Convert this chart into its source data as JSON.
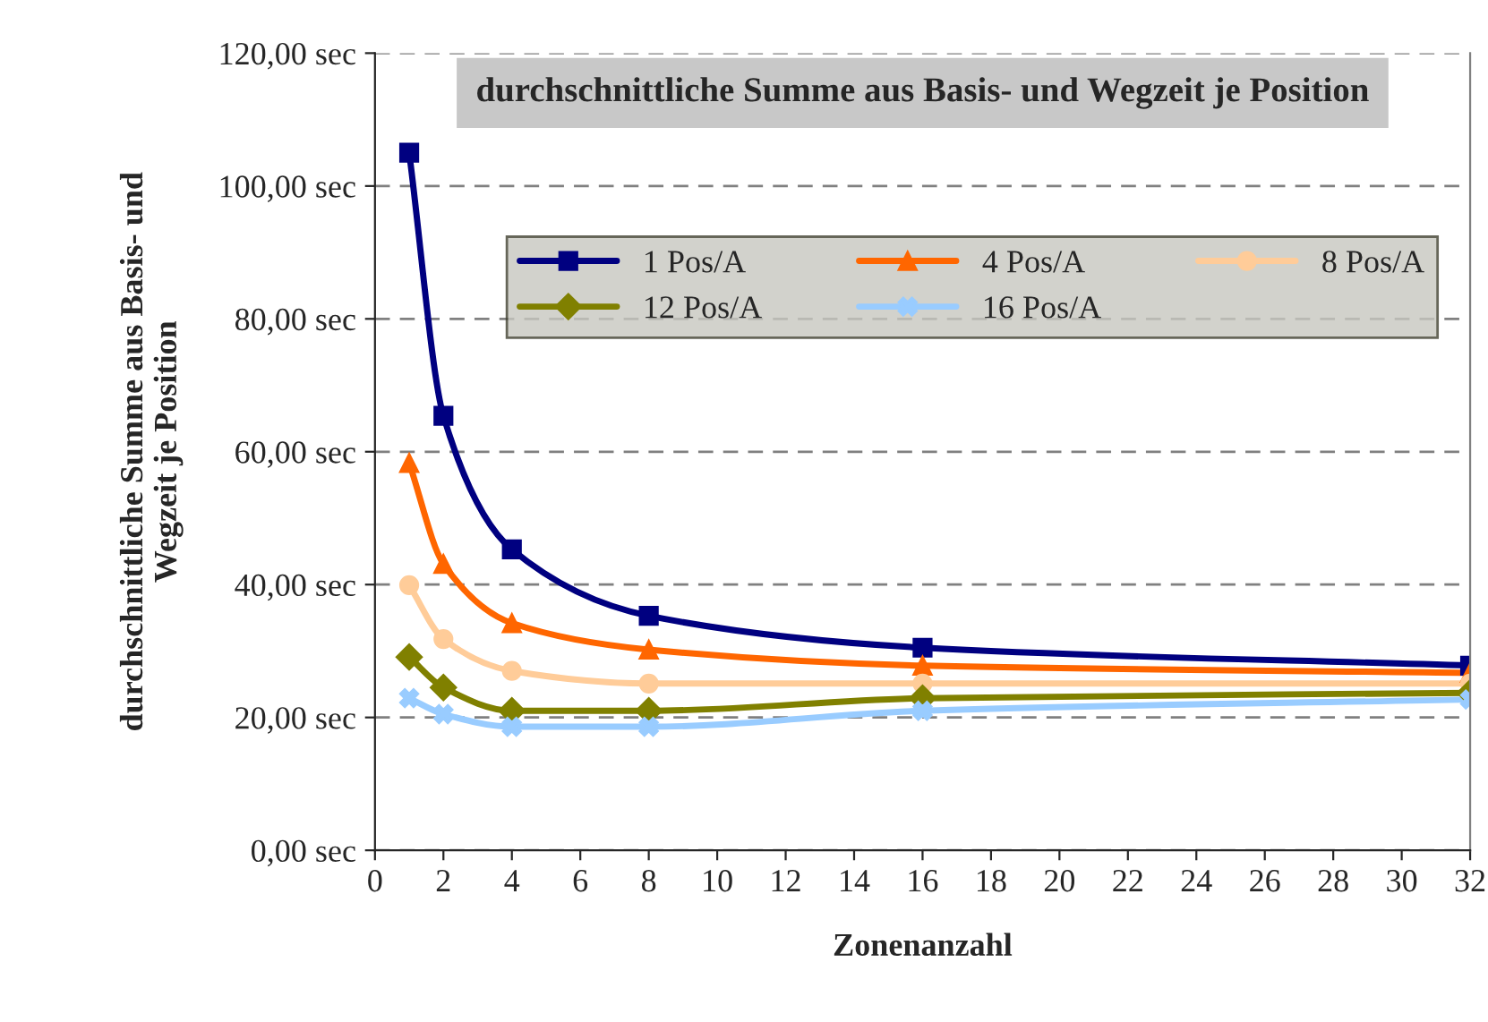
{
  "chart_data": {
    "type": "line",
    "title": "durchschnittliche Summe aus Basis- und Wegzeit je Position",
    "xlabel": "Zonenanzahl",
    "ylabel": "durchschnittliche Summe aus Basis- und\nWegzeit je Position",
    "xlim": [
      0,
      32
    ],
    "xticks": [
      0,
      2,
      4,
      6,
      8,
      10,
      12,
      14,
      16,
      18,
      20,
      22,
      24,
      26,
      28,
      30,
      32
    ],
    "ylim": [
      0,
      120
    ],
    "yticks": [
      {
        "value": 0,
        "label": "0,00 sec"
      },
      {
        "value": 20,
        "label": "20,00 sec"
      },
      {
        "value": 40,
        "label": "40,00 sec"
      },
      {
        "value": 60,
        "label": "60,00 sec"
      },
      {
        "value": 80,
        "label": "80,00 sec"
      },
      {
        "value": 100,
        "label": "100,00 sec"
      },
      {
        "value": 120,
        "label": "120,00 sec"
      }
    ],
    "grid": "y",
    "legend": "top right",
    "line_style": "solid",
    "x": [
      1,
      2,
      4,
      8,
      16,
      32
    ],
    "series": [
      {
        "name": "1 Pos/A",
        "color": "#000080",
        "marker": "square",
        "values": [
          105,
          65.4,
          45.3,
          35.3,
          30.5,
          27.8
        ]
      },
      {
        "name": "4 Pos/A",
        "color": "#ff6600",
        "marker": "triangle",
        "values": [
          58.3,
          43.1,
          34.2,
          30.2,
          27.8,
          26.7
        ]
      },
      {
        "name": "8 Pos/A",
        "color": "#ffcc99",
        "marker": "circle",
        "values": [
          39.9,
          31.8,
          27.0,
          25.1,
          25.1,
          25.1
        ]
      },
      {
        "name": "12 Pos/A",
        "color": "#808000",
        "marker": "diamond",
        "values": [
          29.1,
          24.5,
          21.0,
          21.0,
          22.9,
          23.7
        ]
      },
      {
        "name": "16 Pos/A",
        "color": "#99ccff",
        "marker": "cross",
        "values": [
          22.9,
          20.5,
          18.6,
          18.6,
          21.0,
          22.7
        ]
      }
    ]
  }
}
